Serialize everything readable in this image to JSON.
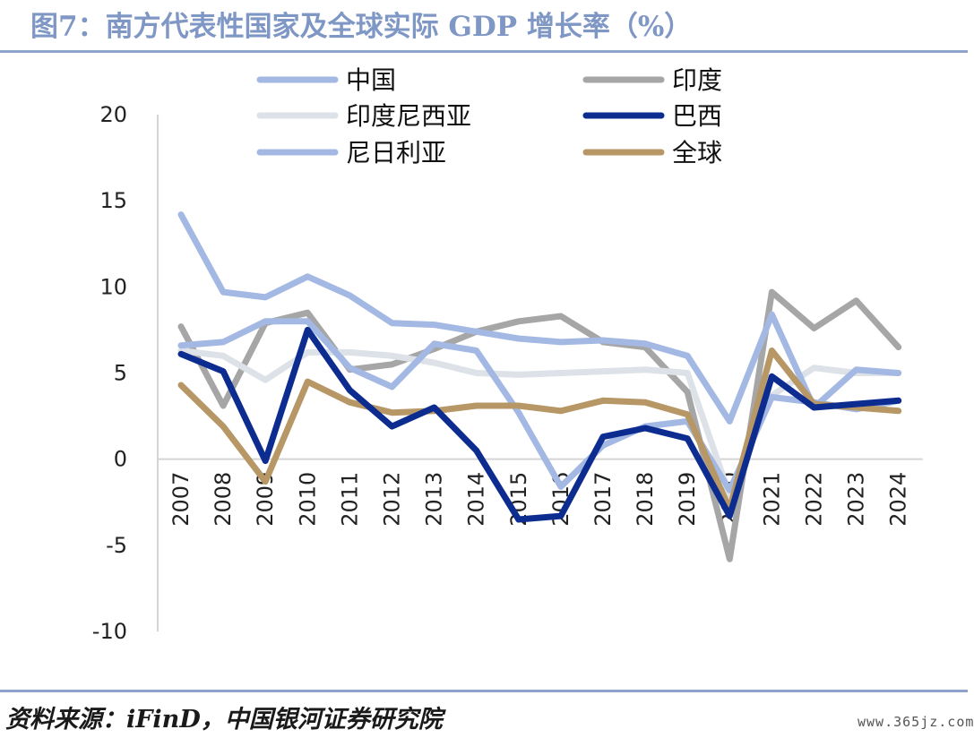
{
  "figure": {
    "title": "图7：南方代表性国家及全球实际 GDP 增长率（%）",
    "source": "资料来源：iFinD，中国银河证券研究院",
    "watermark": "www.365jz.com"
  },
  "chart_data": {
    "type": "line",
    "title": "图7：南方代表性国家及全球实际 GDP 增长率（%）",
    "xlabel": "",
    "ylabel": "",
    "categories": [
      "2007",
      "2008",
      "2009",
      "2010",
      "2011",
      "2012",
      "2013",
      "2014",
      "2015",
      "2016",
      "2017",
      "2018",
      "2019",
      "2020",
      "2021",
      "2022",
      "2023",
      "2024"
    ],
    "ylim": [
      -10,
      20
    ],
    "yticks": [
      -10,
      -5,
      0,
      5,
      10,
      15,
      20
    ],
    "ytick_labels": [
      "-10",
      "-5",
      "0",
      "5",
      "10",
      "15",
      "20"
    ],
    "grid": false,
    "legend_position": "top",
    "series": [
      {
        "name": "印度",
        "color": "#a6a6a6",
        "values": [
          7.7,
          3.1,
          7.9,
          8.5,
          5.2,
          5.5,
          6.4,
          7.4,
          8.0,
          8.3,
          6.8,
          6.5,
          3.9,
          -5.8,
          9.7,
          7.6,
          9.2,
          6.5
        ]
      },
      {
        "name": "印度尼西亚",
        "color": "#dde1e8",
        "values": [
          6.3,
          6.0,
          4.6,
          6.2,
          6.2,
          6.0,
          5.6,
          5.0,
          4.9,
          5.0,
          5.1,
          5.2,
          5.0,
          -2.1,
          3.7,
          5.3,
          5.0,
          5.0
        ]
      },
      {
        "name": "尼日利亚",
        "color": "#a3b8e3",
        "values": [
          6.6,
          6.8,
          8.0,
          8.0,
          5.3,
          4.2,
          6.7,
          6.3,
          2.7,
          -1.6,
          0.8,
          1.9,
          2.2,
          -1.8,
          3.6,
          3.3,
          2.9,
          3.4
        ]
      },
      {
        "name": "中国",
        "color": "#a3b8e3",
        "values": [
          14.2,
          9.7,
          9.4,
          10.6,
          9.5,
          7.9,
          7.8,
          7.4,
          7.0,
          6.8,
          6.9,
          6.7,
          6.0,
          2.2,
          8.4,
          3.0,
          5.2,
          5.0
        ]
      },
      {
        "name": "全球",
        "color": "#b69765",
        "values": [
          4.3,
          1.9,
          -1.3,
          4.5,
          3.3,
          2.7,
          2.8,
          3.1,
          3.1,
          2.8,
          3.4,
          3.3,
          2.6,
          -2.9,
          6.3,
          3.2,
          3.0,
          2.8
        ]
      },
      {
        "name": "巴西",
        "color": "#0d2c8f",
        "values": [
          6.1,
          5.1,
          -0.1,
          7.5,
          4.0,
          1.9,
          3.0,
          0.5,
          -3.5,
          -3.3,
          1.3,
          1.8,
          1.2,
          -3.3,
          4.8,
          3.0,
          3.2,
          3.4
        ]
      }
    ],
    "legend_order": [
      "中国",
      "印度",
      "印度尼西亚",
      "巴西",
      "尼日利亚",
      "全球"
    ]
  }
}
